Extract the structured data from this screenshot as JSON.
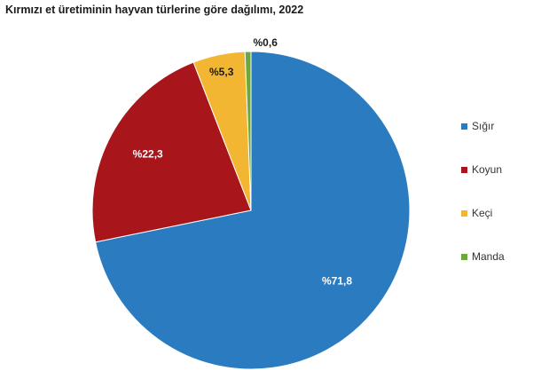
{
  "chart_data": {
    "type": "pie",
    "title": "Kırmızı et üretiminin hayvan türlerine göre dağılımı, 2022",
    "slices": [
      {
        "name": "Sığır",
        "value": 71.8,
        "label": "%71,8",
        "color": "#2b7bc0"
      },
      {
        "name": "Koyun",
        "value": 22.3,
        "label": "%22,3",
        "color": "#a8161c"
      },
      {
        "name": "Keçi",
        "value": 5.3,
        "label": "%5,3",
        "color": "#f2b632"
      },
      {
        "name": "Manda",
        "value": 0.6,
        "label": "%0,6",
        "color": "#6aaa3c"
      }
    ],
    "start_angle_deg": 0,
    "direction": "clockwise",
    "legend_position": "right"
  }
}
